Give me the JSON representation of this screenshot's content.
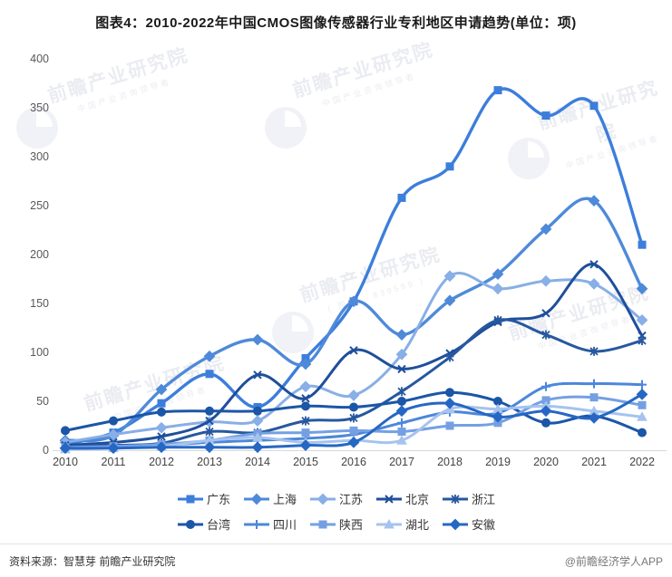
{
  "page": {
    "title": "图表4：2010-2022年中国CMOS图像传感器行业专利地区申请趋势(单位：项)",
    "source": "资料来源：智慧芽 前瞻产业研究院",
    "credit": "@前瞻经济学人APP",
    "watermark": {
      "main": "前瞻产业研究院",
      "sub": "中国产业咨询领导者",
      "code": "( 股票 : 839599 )"
    }
  },
  "chart_data": {
    "type": "line",
    "title": "图表4：2010-2022年中国CMOS图像传感器行业专利地区申请趋势(单位：项)",
    "unit": "项",
    "categories": [
      "2010",
      "2011",
      "2012",
      "2013",
      "2014",
      "2015",
      "2016",
      "2017",
      "2018",
      "2019",
      "2020",
      "2021",
      "2022"
    ],
    "ylim": [
      0,
      400
    ],
    "yticks": [
      0,
      50,
      100,
      150,
      200,
      250,
      300,
      350,
      400
    ],
    "grid": false,
    "legend_position": "bottom",
    "line_style": "smooth",
    "series": [
      {
        "name": "广东",
        "marker": "square",
        "color": "#3c7edb",
        "values": [
          6,
          18,
          48,
          78,
          44,
          94,
          152,
          258,
          290,
          368,
          342,
          352,
          210
        ]
      },
      {
        "name": "上海",
        "marker": "diamond",
        "color": "#4f8ad9",
        "values": [
          10,
          15,
          62,
          96,
          113,
          88,
          152,
          118,
          153,
          180,
          226,
          255,
          165
        ]
      },
      {
        "name": "江苏",
        "marker": "diamond",
        "color": "#88afe6",
        "values": [
          8,
          16,
          23,
          29,
          30,
          65,
          56,
          98,
          178,
          165,
          173,
          170,
          133
        ]
      },
      {
        "name": "北京",
        "marker": "x",
        "color": "#1e4f9c",
        "values": [
          5,
          8,
          14,
          30,
          77,
          53,
          102,
          83,
          99,
          131,
          140,
          190,
          117
        ]
      },
      {
        "name": "浙江",
        "marker": "asterisk",
        "color": "#27589f",
        "values": [
          4,
          5,
          7,
          19,
          18,
          30,
          33,
          60,
          95,
          133,
          118,
          101,
          112
        ]
      },
      {
        "name": "台湾",
        "marker": "circle",
        "color": "#1b56a7",
        "values": [
          20,
          30,
          39,
          40,
          40,
          45,
          44,
          50,
          59,
          50,
          28,
          35,
          18
        ]
      },
      {
        "name": "四川",
        "marker": "plus",
        "color": "#4c87da",
        "values": [
          2,
          3,
          5,
          8,
          10,
          12,
          16,
          28,
          39,
          38,
          65,
          68,
          67
        ]
      },
      {
        "name": "陕西",
        "marker": "square",
        "color": "#74a0e3",
        "values": [
          3,
          4,
          6,
          10,
          17,
          18,
          20,
          19,
          25,
          28,
          51,
          54,
          46
        ]
      },
      {
        "name": "湖北",
        "marker": "triangle",
        "color": "#a6c3ee",
        "values": [
          1,
          2,
          4,
          10,
          13,
          8,
          10,
          10,
          42,
          42,
          45,
          40,
          34
        ]
      },
      {
        "name": "安徽",
        "marker": "diamond",
        "color": "#2667c4",
        "values": [
          2,
          2,
          3,
          3,
          3,
          5,
          8,
          40,
          48,
          34,
          40,
          33,
          57
        ]
      }
    ]
  }
}
